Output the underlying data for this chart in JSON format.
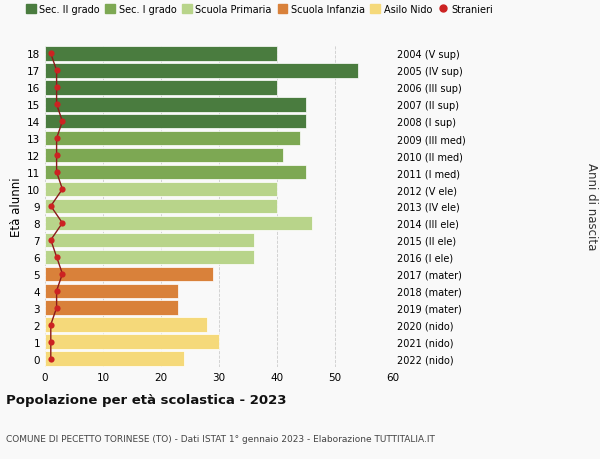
{
  "ages": [
    18,
    17,
    16,
    15,
    14,
    13,
    12,
    11,
    10,
    9,
    8,
    7,
    6,
    5,
    4,
    3,
    2,
    1,
    0
  ],
  "right_labels": [
    "2004 (V sup)",
    "2005 (IV sup)",
    "2006 (III sup)",
    "2007 (II sup)",
    "2008 (I sup)",
    "2009 (III med)",
    "2010 (II med)",
    "2011 (I med)",
    "2012 (V ele)",
    "2013 (IV ele)",
    "2014 (III ele)",
    "2015 (II ele)",
    "2016 (I ele)",
    "2017 (mater)",
    "2018 (mater)",
    "2019 (mater)",
    "2020 (nido)",
    "2021 (nido)",
    "2022 (nido)"
  ],
  "bar_values": [
    40,
    54,
    40,
    45,
    45,
    44,
    41,
    45,
    40,
    40,
    46,
    36,
    36,
    29,
    23,
    23,
    28,
    30,
    24
  ],
  "bar_colors": [
    "#4a7c3f",
    "#4a7c3f",
    "#4a7c3f",
    "#4a7c3f",
    "#4a7c3f",
    "#7da853",
    "#7da853",
    "#7da853",
    "#b8d48a",
    "#b8d48a",
    "#b8d48a",
    "#b8d48a",
    "#b8d48a",
    "#d9813a",
    "#d9813a",
    "#d9813a",
    "#f5d97a",
    "#f5d97a",
    "#f5d97a"
  ],
  "stranieri_values": [
    1,
    2,
    2,
    2,
    3,
    2,
    2,
    2,
    3,
    1,
    3,
    1,
    2,
    3,
    2,
    2,
    1,
    1,
    1
  ],
  "legend_labels": [
    "Sec. II grado",
    "Sec. I grado",
    "Scuola Primaria",
    "Scuola Infanzia",
    "Asilo Nido",
    "Stranieri"
  ],
  "legend_colors": [
    "#4a7c3f",
    "#7da853",
    "#b8d48a",
    "#d9813a",
    "#f5d97a",
    "#cc2222"
  ],
  "ylabel_left": "Età alunni",
  "ylabel_right": "Anni di nascita",
  "title": "Popolazione per età scolastica - 2023",
  "subtitle": "COMUNE DI PECETTO TORINESE (TO) - Dati ISTAT 1° gennaio 2023 - Elaborazione TUTTITALIA.IT",
  "xlim": [
    0,
    60
  ],
  "background_color": "#f9f9f9",
  "grid_color": "#cccccc"
}
